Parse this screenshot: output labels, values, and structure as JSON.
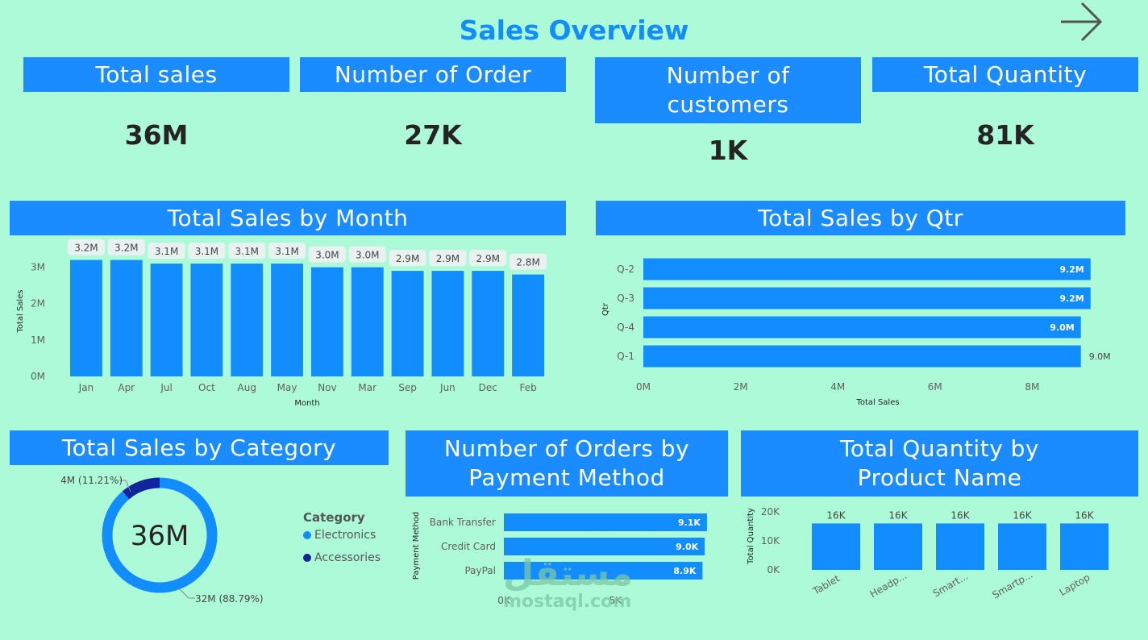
{
  "page_title": "Sales Overview",
  "nav": {
    "icon": "arrow-right-icon"
  },
  "kpis": [
    {
      "label": "Total sales",
      "value": "36M"
    },
    {
      "label": "Number of Order",
      "value": "27K"
    },
    {
      "label": "Number of customers",
      "value": "1K"
    },
    {
      "label": "Total Quantity",
      "value": "81K"
    }
  ],
  "colors": {
    "background": "#adfad9",
    "accent": "#118dff",
    "dark_accent": "#12239e"
  },
  "watermark": {
    "arabic": "مستقل",
    "latin": "mostaql.com"
  },
  "charts": {
    "month": {
      "title": "Total Sales by Month"
    },
    "qtr": {
      "title": "Total Sales by Qtr"
    },
    "category": {
      "title": "Total Sales by Category",
      "center_label": "36M",
      "legend_title": "Category",
      "legend": [
        "Electronics",
        "Accessories"
      ]
    },
    "payment": {
      "title": "Number of Orders by Payment Method"
    },
    "product": {
      "title": "Total Quantity by Product Name"
    }
  },
  "chart_data": [
    {
      "type": "bar",
      "title": "Total Sales by Month",
      "xlabel": "Month",
      "ylabel": "Total Sales",
      "categories": [
        "Jan",
        "Apr",
        "Jul",
        "Oct",
        "Aug",
        "May",
        "Nov",
        "Mar",
        "Sep",
        "Jun",
        "Dec",
        "Feb"
      ],
      "values": [
        3.2,
        3.2,
        3.1,
        3.1,
        3.1,
        3.1,
        3.0,
        3.0,
        2.9,
        2.9,
        2.9,
        2.8
      ],
      "data_labels": [
        "3.2M",
        "3.2M",
        "3.1M",
        "3.1M",
        "3.1M",
        "3.1M",
        "3.0M",
        "3.0M",
        "2.9M",
        "2.9M",
        "2.9M",
        "2.8M"
      ],
      "y_ticks": [
        "0M",
        "1M",
        "2M",
        "3M"
      ],
      "ylim": [
        0,
        3.3
      ]
    },
    {
      "type": "bar",
      "orientation": "horizontal",
      "title": "Total Sales by Qtr",
      "xlabel": "Total Sales",
      "ylabel": "Qtr",
      "categories": [
        "Q-2",
        "Q-3",
        "Q-4",
        "Q-1"
      ],
      "values": [
        9.2,
        9.2,
        9.0,
        9.0
      ],
      "data_labels": [
        "9.2M",
        "9.2M",
        "9.0M",
        "9.0M"
      ],
      "x_ticks": [
        "0M",
        "2M",
        "4M",
        "6M",
        "8M"
      ],
      "xlim": [
        0,
        10
      ]
    },
    {
      "type": "pie",
      "style": "donut",
      "title": "Total Sales by Category",
      "legend_title": "Category",
      "slices": [
        {
          "name": "Electronics",
          "value": 32,
          "percent": 88.79,
          "label": "32M (88.79%)",
          "color": "#118dff"
        },
        {
          "name": "Accessories",
          "value": 4,
          "percent": 11.21,
          "label": "4M (11.21%)",
          "color": "#12239e"
        }
      ],
      "center_label": "36M"
    },
    {
      "type": "bar",
      "orientation": "horizontal",
      "title": "Number of Orders by Payment Method",
      "ylabel": "Payment Method",
      "categories": [
        "Bank Transfer",
        "Credit Card",
        "PayPal"
      ],
      "values": [
        9.1,
        9.0,
        8.9
      ],
      "data_labels": [
        "9.1K",
        "9.0K",
        "8.9K"
      ],
      "x_ticks": [
        "0K",
        "5K"
      ],
      "xlim": [
        0,
        9.5
      ]
    },
    {
      "type": "bar",
      "title": "Total Quantity by Product Name",
      "ylabel": "Total Quantity",
      "categories": [
        "Tablet",
        "Headp...",
        "Smart...",
        "Smartp...",
        "Laptop"
      ],
      "values": [
        16,
        16,
        16,
        16,
        16
      ],
      "data_labels": [
        "16K",
        "16K",
        "16K",
        "16K",
        "16K"
      ],
      "y_ticks": [
        "0K",
        "10K",
        "20K"
      ],
      "ylim": [
        0,
        20
      ]
    }
  ]
}
